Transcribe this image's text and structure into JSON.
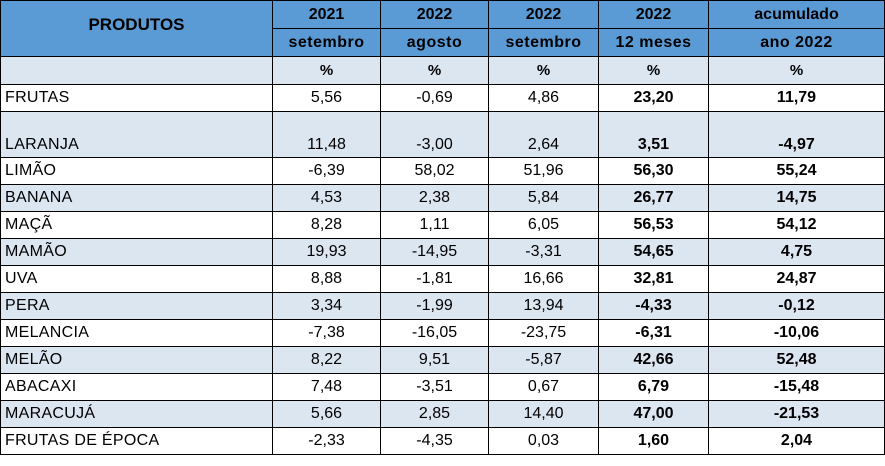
{
  "header": {
    "produtos": "PRODUTOS",
    "years": [
      "2021",
      "2022",
      "2022",
      "2022",
      "acumulado"
    ],
    "periods": [
      "setembro",
      "agosto",
      "setembro",
      "12 meses",
      "ano 2022"
    ],
    "units": [
      "%",
      "%",
      "%",
      "%",
      "%"
    ]
  },
  "rows": [
    {
      "name": "FRUTAS",
      "values": [
        "5,56",
        "-0,69",
        "4,86",
        "23,20",
        "11,79"
      ]
    },
    {
      "name": "LARANJA",
      "values": [
        "11,48",
        "-3,00",
        "2,64",
        "3,51",
        "-4,97"
      ]
    },
    {
      "name": "LIMÃO",
      "values": [
        "-6,39",
        "58,02",
        "51,96",
        "56,30",
        "55,24"
      ]
    },
    {
      "name": "BANANA",
      "values": [
        "4,53",
        "2,38",
        "5,84",
        "26,77",
        "14,75"
      ]
    },
    {
      "name": "MAÇÃ",
      "values": [
        "8,28",
        "1,11",
        "6,05",
        "56,53",
        "54,12"
      ]
    },
    {
      "name": "MAMÃO",
      "values": [
        "19,93",
        "-14,95",
        "-3,31",
        "54,65",
        "4,75"
      ]
    },
    {
      "name": "UVA",
      "values": [
        "8,88",
        "-1,81",
        "16,66",
        "32,81",
        "24,87"
      ]
    },
    {
      "name": "PERA",
      "values": [
        "3,34",
        "-1,99",
        "13,94",
        "-4,33",
        "-0,12"
      ]
    },
    {
      "name": "MELANCIA",
      "values": [
        "-7,38",
        "-16,05",
        "-23,75",
        "-6,31",
        "-10,06"
      ]
    },
    {
      "name": "MELÃO",
      "values": [
        "8,22",
        "9,51",
        "-5,87",
        "42,66",
        "52,48"
      ]
    },
    {
      "name": "ABACAXI",
      "values": [
        "7,48",
        "-3,51",
        "0,67",
        "6,79",
        "-15,48"
      ]
    },
    {
      "name": "MARACUJÁ",
      "values": [
        "5,66",
        "2,85",
        "14,40",
        "47,00",
        "-21,53"
      ]
    },
    {
      "name": "FRUTAS DE ÉPOCA",
      "values": [
        "-2,33",
        "-4,35",
        "0,03",
        "1,60",
        "2,04"
      ]
    }
  ],
  "colors": {
    "header_blue": "#5b9bd5",
    "row_light_blue": "#dce6f1",
    "row_white": "#ffffff"
  }
}
